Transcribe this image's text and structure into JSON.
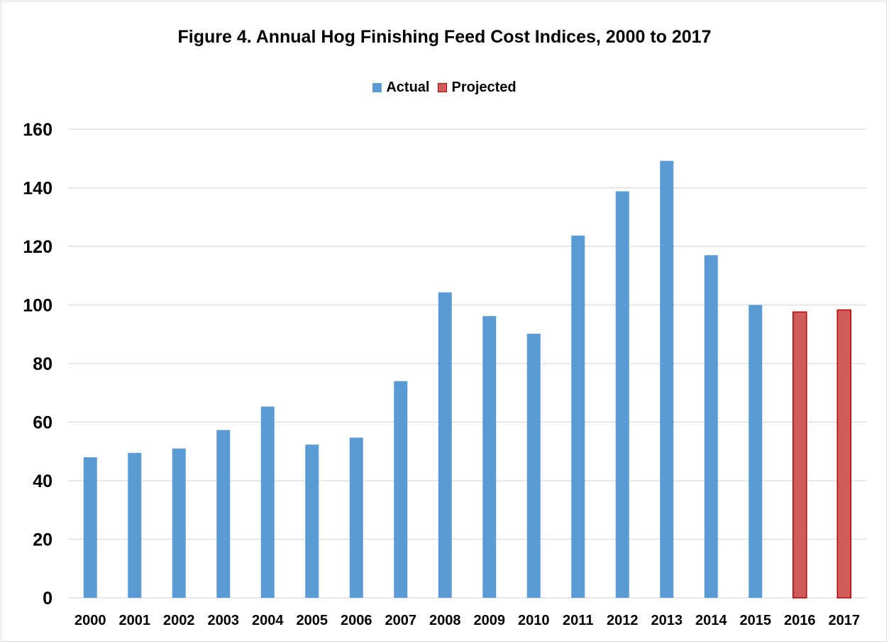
{
  "chart_data": {
    "type": "bar",
    "title": "Figure 4.  Annual Hog Finishing Feed Cost Indices, 2000 to 2017",
    "xlabel": "",
    "ylabel": "",
    "ylim": [
      0,
      160
    ],
    "yticks": [
      0,
      20,
      40,
      60,
      80,
      100,
      120,
      140,
      160
    ],
    "grid": true,
    "legend_position": "top-center",
    "categories": [
      "2000",
      "2001",
      "2002",
      "2003",
      "2004",
      "2005",
      "2006",
      "2007",
      "2008",
      "2009",
      "2010",
      "2011",
      "2012",
      "2013",
      "2014",
      "2015",
      "2016",
      "2017"
    ],
    "series": [
      {
        "name": "Actual",
        "color": "#5b9bd5",
        "values": [
          48,
          49.5,
          51,
          57.3,
          65.3,
          52.3,
          54.7,
          74,
          104.3,
          96.2,
          90.2,
          123.7,
          138.8,
          149.2,
          117,
          100,
          null,
          null
        ]
      },
      {
        "name": "Projected",
        "color": "#cd5c5a",
        "border_color": "#c00000",
        "values": [
          null,
          null,
          null,
          null,
          null,
          null,
          null,
          null,
          null,
          null,
          null,
          null,
          null,
          null,
          null,
          null,
          97.6,
          98.3
        ]
      }
    ]
  }
}
